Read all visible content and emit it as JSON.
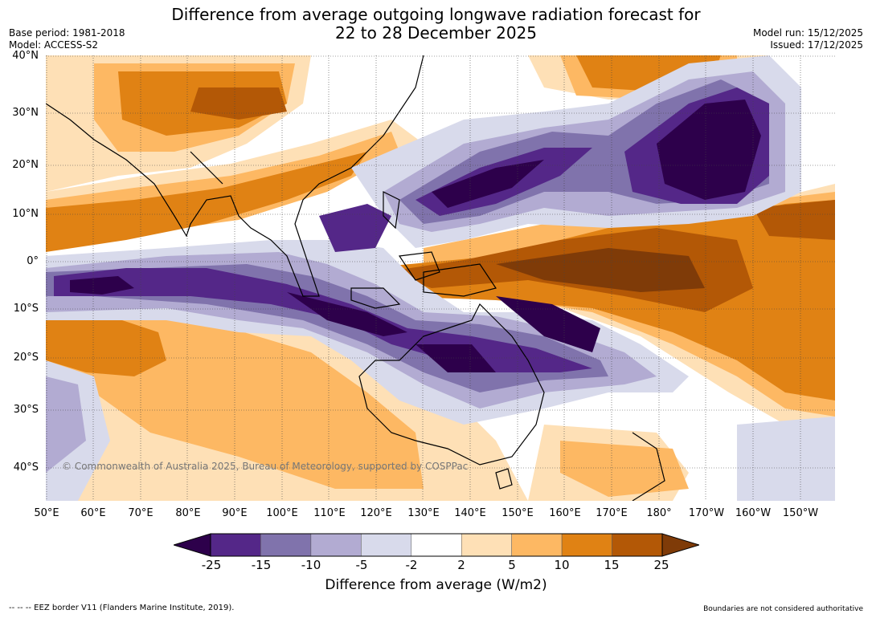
{
  "header": {
    "title_line1": "Difference from average outgoing longwave radiation forecast for",
    "title_line2": "22 to 28 December 2025",
    "base_period": "Base period: 1981-2018",
    "model": "Model: ACCESS-S2",
    "model_run": "Model run: 15/12/2025",
    "issued": "Issued: 17/12/2025"
  },
  "map": {
    "lat_labels": [
      "40°N",
      "30°N",
      "20°N",
      "10°N",
      "0°",
      "10°S",
      "20°S",
      "30°S",
      "40°S"
    ],
    "lon_labels": [
      "50°E",
      "60°E",
      "70°E",
      "80°E",
      "90°E",
      "100°E",
      "110°E",
      "120°E",
      "130°E",
      "140°E",
      "150°E",
      "160°E",
      "170°E",
      "180°",
      "170°W",
      "160°W",
      "150°W"
    ],
    "copyright": "© Commonwealth of Australia 2025, Bureau of Meteorology, supported by COSPPac"
  },
  "colorbar": {
    "ticks": [
      "-25",
      "-15",
      "-10",
      "-5",
      "-2",
      "2",
      "5",
      "10",
      "15",
      "25"
    ],
    "colors": [
      "#2d004b",
      "#542788",
      "#8073ac",
      "#b2abd2",
      "#d8daeb",
      "#ffffff",
      "#fee0b6",
      "#fdb863",
      "#e08214",
      "#b35806",
      "#7f3b08"
    ],
    "label": "Difference from average (W/m2)"
  },
  "footer": {
    "eez_note": "--  --  -- EEZ border V11 (Flanders Marine Institute, 2019).",
    "boundaries_note": "Boundaries are not considered authoritative"
  }
}
